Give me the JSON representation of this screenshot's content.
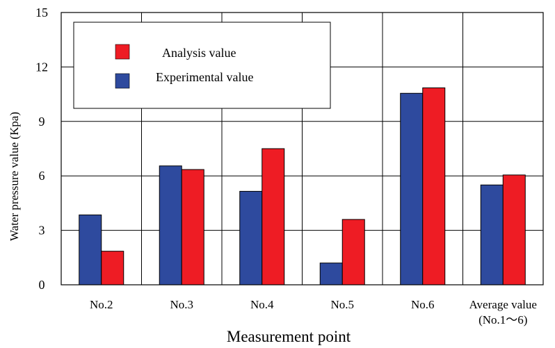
{
  "chart_data": {
    "type": "bar",
    "categories": [
      "No.2",
      "No.3",
      "No.4",
      "No.5",
      "No.6",
      "Average value\n(No.1〜6)"
    ],
    "series": [
      {
        "name": "Experimental value",
        "values": [
          3.85,
          6.55,
          5.15,
          1.2,
          10.55,
          5.5
        ],
        "color": "#2e4a9e"
      },
      {
        "name": "Analysis value",
        "values": [
          1.85,
          6.35,
          7.5,
          3.6,
          10.85,
          6.05
        ],
        "color": "#ee1c24"
      }
    ],
    "xlabel": "Measurement point",
    "ylabel": "Water pressure value (Kpa)",
    "ylim": [
      0,
      15
    ],
    "yticks": [
      0,
      3,
      6,
      9,
      12,
      15
    ],
    "grid": true,
    "legend": {
      "placement": "top-left",
      "order": [
        "Analysis value",
        "Experimental value"
      ]
    }
  }
}
